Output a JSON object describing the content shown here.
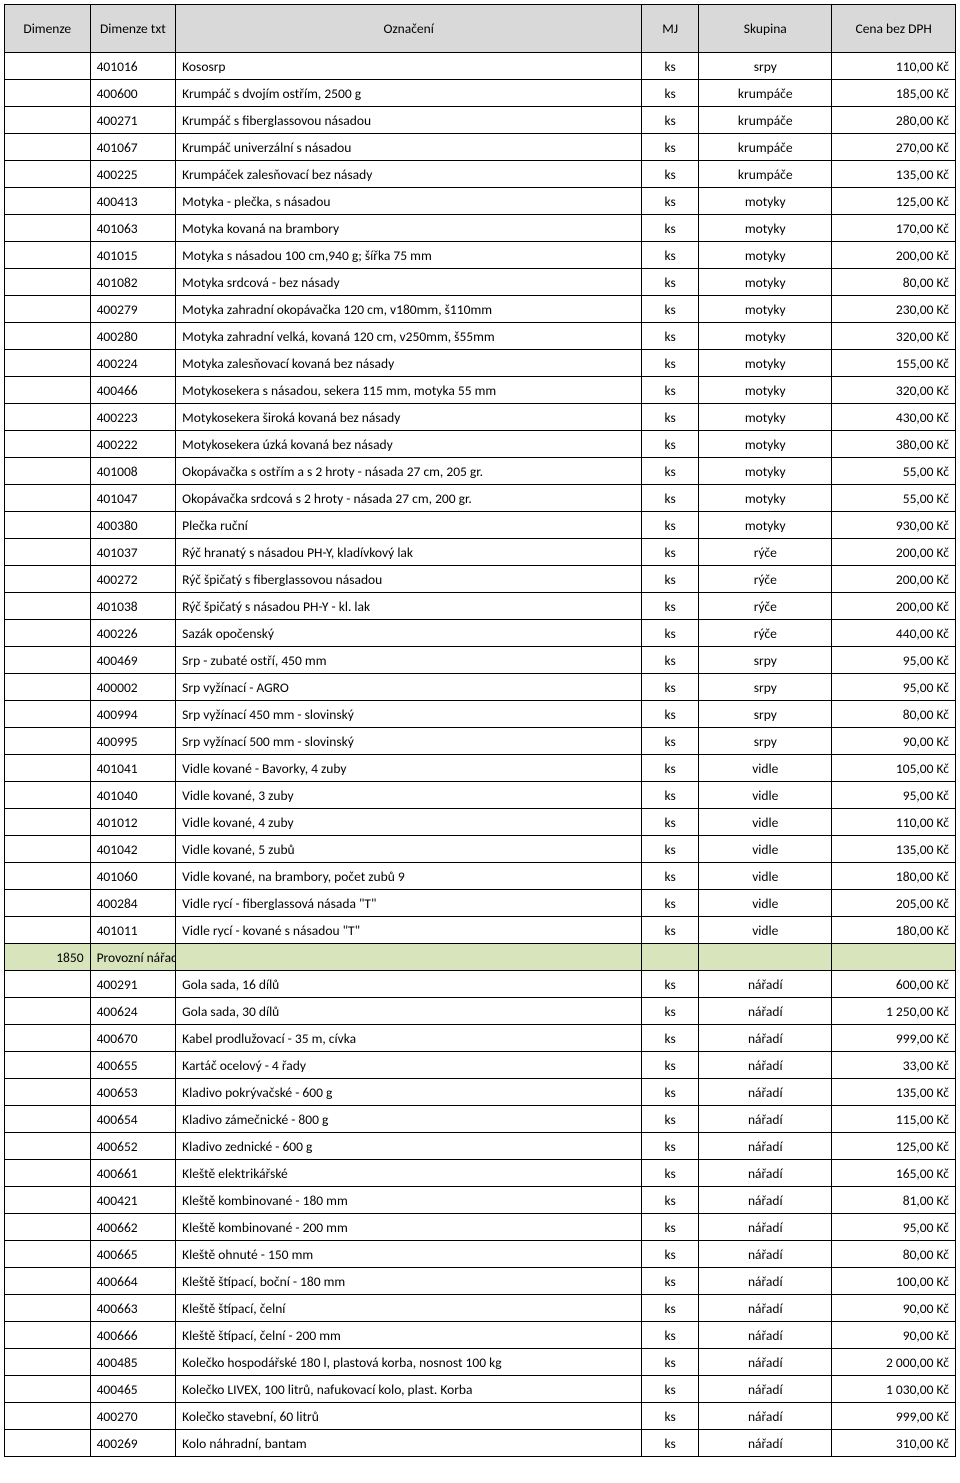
{
  "columns": [
    "Dimenze",
    "Dimenze txt",
    "Označení",
    "MJ",
    "Skupina",
    "Cena bez DPH"
  ],
  "colors": {
    "header_bg": "#d9d9d9",
    "section_bg": "#d8e4bc",
    "border": "#000000",
    "text": "#000000",
    "page_bg": "#ffffff"
  },
  "rows": [
    {
      "dim": "",
      "dimtxt": "401016",
      "ozn": "Kososrp",
      "mj": "ks",
      "sku": "srpy",
      "cena": "110,00 Kč"
    },
    {
      "dim": "",
      "dimtxt": "400600",
      "ozn": "Krumpáč s dvojím ostřím, 2500 g",
      "mj": "ks",
      "sku": "krumpáče",
      "cena": "185,00 Kč"
    },
    {
      "dim": "",
      "dimtxt": "400271",
      "ozn": "Krumpáč s fiberglassovou násadou",
      "mj": "ks",
      "sku": "krumpáče",
      "cena": "280,00 Kč"
    },
    {
      "dim": "",
      "dimtxt": "401067",
      "ozn": "Krumpáč univerzální s násadou",
      "mj": "ks",
      "sku": "krumpáče",
      "cena": "270,00 Kč"
    },
    {
      "dim": "",
      "dimtxt": "400225",
      "ozn": "Krumpáček zalesňovací bez násady",
      "mj": "ks",
      "sku": "krumpáče",
      "cena": "135,00 Kč"
    },
    {
      "dim": "",
      "dimtxt": "400413",
      "ozn": "Motyka - plečka, s násadou",
      "mj": "ks",
      "sku": "motyky",
      "cena": "125,00 Kč"
    },
    {
      "dim": "",
      "dimtxt": "401063",
      "ozn": "Motyka kovaná na brambory",
      "mj": "ks",
      "sku": "motyky",
      "cena": "170,00 Kč"
    },
    {
      "dim": "",
      "dimtxt": "401015",
      "ozn": "Motyka s násadou 100 cm,940 g; šířka 75 mm",
      "mj": "ks",
      "sku": "motyky",
      "cena": "200,00 Kč"
    },
    {
      "dim": "",
      "dimtxt": "401082",
      "ozn": "Motyka srdcová - bez násady",
      "mj": "ks",
      "sku": "motyky",
      "cena": "80,00 Kč"
    },
    {
      "dim": "",
      "dimtxt": "400279",
      "ozn": "Motyka zahradní okopávačka 120 cm, v180mm, š110mm",
      "mj": "ks",
      "sku": "motyky",
      "cena": "230,00 Kč"
    },
    {
      "dim": "",
      "dimtxt": "400280",
      "ozn": "Motyka zahradní velká, kovaná 120 cm, v250mm, š55mm",
      "mj": "ks",
      "sku": "motyky",
      "cena": "320,00 Kč"
    },
    {
      "dim": "",
      "dimtxt": "400224",
      "ozn": "Motyka zalesňovací kovaná bez násady",
      "mj": "ks",
      "sku": "motyky",
      "cena": "155,00 Kč"
    },
    {
      "dim": "",
      "dimtxt": "400466",
      "ozn": "Motykosekera s násadou, sekera 115 mm, motyka 55 mm",
      "mj": "ks",
      "sku": "motyky",
      "cena": "320,00 Kč"
    },
    {
      "dim": "",
      "dimtxt": "400223",
      "ozn": "Motykosekera široká kovaná bez násady",
      "mj": "ks",
      "sku": "motyky",
      "cena": "430,00 Kč"
    },
    {
      "dim": "",
      "dimtxt": "400222",
      "ozn": "Motykosekera úzká kovaná bez násady",
      "mj": "ks",
      "sku": "motyky",
      "cena": "380,00 Kč"
    },
    {
      "dim": "",
      "dimtxt": "401008",
      "ozn": "Okopávačka s ostřím a s 2 hroty - násada 27 cm, 205 gr.",
      "mj": "ks",
      "sku": "motyky",
      "cena": "55,00 Kč"
    },
    {
      "dim": "",
      "dimtxt": "401047",
      "ozn": "Okopávačka srdcová s 2 hroty - násada 27 cm, 200 gr.",
      "mj": "ks",
      "sku": "motyky",
      "cena": "55,00 Kč"
    },
    {
      "dim": "",
      "dimtxt": "400380",
      "ozn": "Plečka ruční",
      "mj": "ks",
      "sku": "motyky",
      "cena": "930,00 Kč"
    },
    {
      "dim": "",
      "dimtxt": "401037",
      "ozn": "Rýč hranatý s násadou PH-Y, kladívkový lak",
      "mj": "ks",
      "sku": "rýče",
      "cena": "200,00 Kč"
    },
    {
      "dim": "",
      "dimtxt": "400272",
      "ozn": "Rýč špičatý s fiberglassovou násadou",
      "mj": "ks",
      "sku": "rýče",
      "cena": "200,00 Kč"
    },
    {
      "dim": "",
      "dimtxt": "401038",
      "ozn": "Rýč špičatý s násadou PH-Y - kl. lak",
      "mj": "ks",
      "sku": "rýče",
      "cena": "200,00 Kč"
    },
    {
      "dim": "",
      "dimtxt": "400226",
      "ozn": "Sazák opočenský",
      "mj": "ks",
      "sku": "rýče",
      "cena": "440,00 Kč"
    },
    {
      "dim": "",
      "dimtxt": "400469",
      "ozn": "Srp - zubaté ostří, 450 mm",
      "mj": "ks",
      "sku": "srpy",
      "cena": "95,00 Kč"
    },
    {
      "dim": "",
      "dimtxt": "400002",
      "ozn": "Srp vyžínací - AGRO",
      "mj": "ks",
      "sku": "srpy",
      "cena": "95,00 Kč"
    },
    {
      "dim": "",
      "dimtxt": "400994",
      "ozn": "Srp vyžínací 450 mm - slovinský",
      "mj": "ks",
      "sku": "srpy",
      "cena": "80,00 Kč"
    },
    {
      "dim": "",
      "dimtxt": "400995",
      "ozn": "Srp vyžínací 500 mm - slovinský",
      "mj": "ks",
      "sku": "srpy",
      "cena": "90,00 Kč"
    },
    {
      "dim": "",
      "dimtxt": "401041",
      "ozn": "Vidle kované - Bavorky, 4 zuby",
      "mj": "ks",
      "sku": "vidle",
      "cena": "105,00 Kč"
    },
    {
      "dim": "",
      "dimtxt": "401040",
      "ozn": "Vidle kované, 3 zuby",
      "mj": "ks",
      "sku": "vidle",
      "cena": "95,00 Kč"
    },
    {
      "dim": "",
      "dimtxt": "401012",
      "ozn": "Vidle kované, 4 zuby",
      "mj": "ks",
      "sku": "vidle",
      "cena": "110,00 Kč"
    },
    {
      "dim": "",
      "dimtxt": "401042",
      "ozn": "Vidle kované, 5 zubů",
      "mj": "ks",
      "sku": "vidle",
      "cena": "135,00 Kč"
    },
    {
      "dim": "",
      "dimtxt": "401060",
      "ozn": "Vidle kované, na brambory, počet zubů 9",
      "mj": "ks",
      "sku": "vidle",
      "cena": "180,00 Kč"
    },
    {
      "dim": "",
      "dimtxt": "400284",
      "ozn": "Vidle rycí - fiberglassová násada \"T\"",
      "mj": "ks",
      "sku": "vidle",
      "cena": "205,00 Kč"
    },
    {
      "dim": "",
      "dimtxt": "401011",
      "ozn": "Vidle rycí - kované s násadou \"T\"",
      "mj": "ks",
      "sku": "vidle",
      "cena": "180,00 Kč"
    },
    {
      "section": true,
      "dim": "1850",
      "dimtxt": "Provozní nářadí",
      "ozn": "",
      "mj": "",
      "sku": "",
      "cena": ""
    },
    {
      "dim": "",
      "dimtxt": "400291",
      "ozn": "Gola sada, 16 dílů",
      "mj": "ks",
      "sku": "nářadí",
      "cena": "600,00 Kč"
    },
    {
      "dim": "",
      "dimtxt": "400624",
      "ozn": "Gola sada, 30 dílů",
      "mj": "ks",
      "sku": "nářadí",
      "cena": "1 250,00 Kč"
    },
    {
      "dim": "",
      "dimtxt": "400670",
      "ozn": "Kabel prodlužovací - 35 m, cívka",
      "mj": "ks",
      "sku": "nářadí",
      "cena": "999,00 Kč"
    },
    {
      "dim": "",
      "dimtxt": "400655",
      "ozn": "Kartáč ocelový - 4 řady",
      "mj": "ks",
      "sku": "nářadí",
      "cena": "33,00 Kč"
    },
    {
      "dim": "",
      "dimtxt": "400653",
      "ozn": "Kladivo pokrývačské - 600 g",
      "mj": "ks",
      "sku": "nářadí",
      "cena": "135,00 Kč"
    },
    {
      "dim": "",
      "dimtxt": "400654",
      "ozn": "Kladivo zámečnické - 800 g",
      "mj": "ks",
      "sku": "nářadí",
      "cena": "115,00 Kč"
    },
    {
      "dim": "",
      "dimtxt": "400652",
      "ozn": "Kladivo zednické - 600 g",
      "mj": "ks",
      "sku": "nářadí",
      "cena": "125,00 Kč"
    },
    {
      "dim": "",
      "dimtxt": "400661",
      "ozn": "Kleště elektrikářské",
      "mj": "ks",
      "sku": "nářadí",
      "cena": "165,00 Kč"
    },
    {
      "dim": "",
      "dimtxt": "400421",
      "ozn": "Kleště kombinované - 180 mm",
      "mj": "ks",
      "sku": "nářadí",
      "cena": "81,00 Kč"
    },
    {
      "dim": "",
      "dimtxt": "400662",
      "ozn": "Kleště kombinované - 200 mm",
      "mj": "ks",
      "sku": "nářadí",
      "cena": "95,00 Kč"
    },
    {
      "dim": "",
      "dimtxt": "400665",
      "ozn": "Kleště ohnuté - 150 mm",
      "mj": "ks",
      "sku": "nářadí",
      "cena": "80,00 Kč"
    },
    {
      "dim": "",
      "dimtxt": "400664",
      "ozn": "Kleště štípací, boční - 180 mm",
      "mj": "ks",
      "sku": "nářadí",
      "cena": "100,00 Kč"
    },
    {
      "dim": "",
      "dimtxt": "400663",
      "ozn": "Kleště štípací, čelní",
      "mj": "ks",
      "sku": "nářadí",
      "cena": "90,00 Kč"
    },
    {
      "dim": "",
      "dimtxt": "400666",
      "ozn": "Kleště štípací, čelní - 200 mm",
      "mj": "ks",
      "sku": "nářadí",
      "cena": "90,00 Kč"
    },
    {
      "dim": "",
      "dimtxt": "400485",
      "ozn": "Kolečko hospodářské 180 l, plastová korba, nosnost 100 kg",
      "mj": "ks",
      "sku": "nářadí",
      "cena": "2 000,00 Kč"
    },
    {
      "dim": "",
      "dimtxt": "400465",
      "ozn": "Kolečko LIVEX, 100 litrů, nafukovací kolo, plast. Korba",
      "mj": "ks",
      "sku": "nářadí",
      "cena": "1 030,00 Kč"
    },
    {
      "dim": "",
      "dimtxt": "400270",
      "ozn": "Kolečko stavební, 60 litrů",
      "mj": "ks",
      "sku": "nářadí",
      "cena": "999,00 Kč"
    },
    {
      "dim": "",
      "dimtxt": "400269",
      "ozn": "Kolo náhradní, bantam",
      "mj": "ks",
      "sku": "nářadí",
      "cena": "310,00 Kč"
    }
  ]
}
